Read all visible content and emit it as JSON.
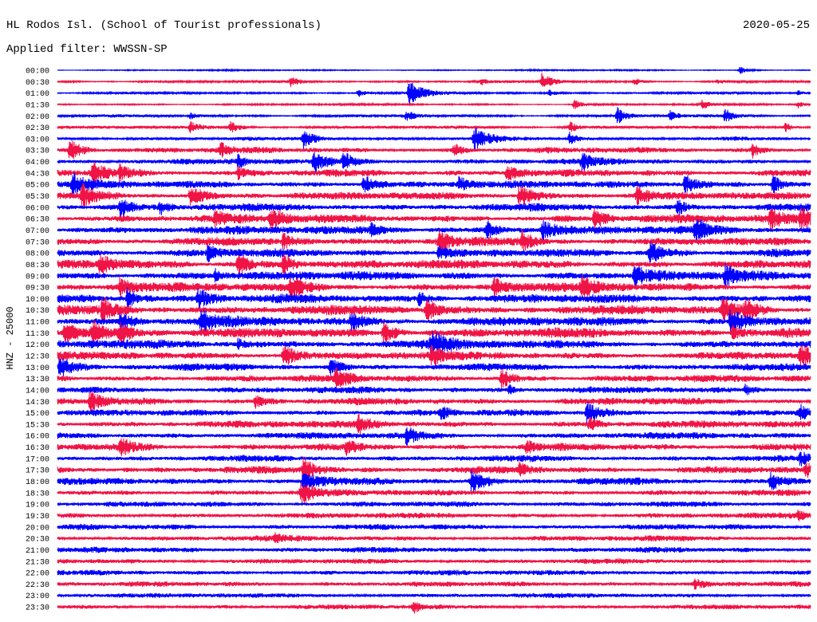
{
  "chart_data": {
    "type": "line",
    "title": "HL Rodos Isl. (School of Tourist professionals)",
    "date": "2020-05-25",
    "subtitle": "Applied filter: WWSSN-SP",
    "ylabel": "HNZ - 25000",
    "xlim": [
      0,
      30
    ],
    "grid": false,
    "colors": [
      "#0000ff",
      "#f01446"
    ],
    "rows": [
      {
        "time": "00:00",
        "noise": 0.06,
        "events": [
          [
            27.2,
            0.35
          ]
        ]
      },
      {
        "time": "00:30",
        "noise": 0.1,
        "events": [
          [
            9.3,
            0.45
          ],
          [
            16.9,
            0.3
          ],
          [
            19.3,
            0.75
          ],
          [
            23.0,
            0.3
          ],
          [
            26.3,
            0.25
          ]
        ]
      },
      {
        "time": "01:00",
        "noise": 0.1,
        "events": [
          [
            12.0,
            0.35
          ],
          [
            14.0,
            1.1
          ],
          [
            19.6,
            0.3
          ],
          [
            29.5,
            0.2
          ]
        ]
      },
      {
        "time": "01:30",
        "noise": 0.08,
        "events": [
          [
            20.6,
            0.45
          ],
          [
            25.7,
            0.4
          ],
          [
            29.5,
            0.3
          ]
        ]
      },
      {
        "time": "02:00",
        "noise": 0.12,
        "events": [
          [
            5.3,
            0.3
          ],
          [
            13.9,
            0.5
          ],
          [
            22.3,
            0.7
          ],
          [
            24.4,
            0.45
          ],
          [
            26.6,
            0.6
          ]
        ]
      },
      {
        "time": "02:30",
        "noise": 0.14,
        "events": [
          [
            5.3,
            0.45
          ],
          [
            6.9,
            0.5
          ],
          [
            20.4,
            0.5
          ],
          [
            29.0,
            0.4
          ]
        ]
      },
      {
        "time": "03:00",
        "noise": 0.16,
        "events": [
          [
            9.8,
            0.9
          ],
          [
            16.6,
            1.1
          ],
          [
            20.4,
            0.6
          ]
        ]
      },
      {
        "time": "03:30",
        "noise": 0.25,
        "events": [
          [
            0.5,
            0.95
          ],
          [
            6.5,
            0.6
          ],
          [
            15.8,
            0.5
          ],
          [
            27.7,
            0.6
          ]
        ]
      },
      {
        "time": "04:00",
        "noise": 0.25,
        "events": [
          [
            7.2,
            0.5
          ],
          [
            10.2,
            0.9
          ],
          [
            11.4,
            0.8
          ],
          [
            20.9,
            0.7
          ]
        ]
      },
      {
        "time": "04:30",
        "noise": 0.3,
        "events": [
          [
            1.4,
            0.9
          ],
          [
            2.5,
            0.6
          ],
          [
            7.2,
            0.5
          ],
          [
            17.9,
            0.8
          ]
        ]
      },
      {
        "time": "05:00",
        "noise": 0.3,
        "events": [
          [
            0.6,
            1.0
          ],
          [
            12.2,
            0.9
          ],
          [
            16.0,
            0.7
          ],
          [
            25.0,
            0.9
          ],
          [
            28.5,
            0.8
          ]
        ]
      },
      {
        "time": "05:30",
        "noise": 0.32,
        "events": [
          [
            1.0,
            1.0
          ],
          [
            5.3,
            0.9
          ],
          [
            18.4,
            1.0
          ],
          [
            23.1,
            0.8
          ]
        ]
      },
      {
        "time": "06:00",
        "noise": 0.32,
        "events": [
          [
            2.5,
            0.9
          ],
          [
            4.1,
            0.6
          ],
          [
            24.7,
            0.6
          ]
        ]
      },
      {
        "time": "06:30",
        "noise": 0.35,
        "events": [
          [
            6.3,
            0.7
          ],
          [
            8.5,
            0.9
          ],
          [
            21.4,
            0.8
          ],
          [
            28.4,
            0.9
          ],
          [
            29.6,
            0.9
          ]
        ]
      },
      {
        "time": "07:00",
        "noise": 0.35,
        "events": [
          [
            12.5,
            0.7
          ],
          [
            17.1,
            0.8
          ],
          [
            19.3,
            0.9
          ],
          [
            25.4,
            1.0
          ]
        ]
      },
      {
        "time": "07:30",
        "noise": 0.35,
        "events": [
          [
            9.0,
            0.7
          ],
          [
            15.2,
            0.9
          ],
          [
            18.5,
            0.8
          ]
        ]
      },
      {
        "time": "08:00",
        "noise": 0.35,
        "events": [
          [
            6.0,
            0.7
          ],
          [
            15.2,
            0.7
          ],
          [
            23.6,
            1.0
          ]
        ]
      },
      {
        "time": "08:30",
        "noise": 0.38,
        "events": [
          [
            1.7,
            0.9
          ],
          [
            7.2,
            0.9
          ],
          [
            9.0,
            0.9
          ]
        ]
      },
      {
        "time": "09:00",
        "noise": 0.38,
        "events": [
          [
            6.3,
            0.5
          ],
          [
            23.0,
            0.9
          ],
          [
            26.6,
            0.9
          ]
        ]
      },
      {
        "time": "09:30",
        "noise": 0.38,
        "events": [
          [
            2.5,
            0.8
          ],
          [
            9.3,
            0.9
          ],
          [
            17.4,
            0.8
          ],
          [
            20.9,
            0.9
          ]
        ]
      },
      {
        "time": "10:00",
        "noise": 0.38,
        "events": [
          [
            2.8,
            0.9
          ],
          [
            5.6,
            0.9
          ],
          [
            14.4,
            0.6
          ]
        ]
      },
      {
        "time": "10:30",
        "noise": 0.4,
        "events": [
          [
            1.8,
            1.0
          ],
          [
            14.7,
            0.9
          ],
          [
            26.5,
            1.0
          ],
          [
            27.4,
            0.9
          ]
        ]
      },
      {
        "time": "11:00",
        "noise": 0.4,
        "events": [
          [
            2.5,
            0.8
          ],
          [
            5.7,
            1.0
          ],
          [
            11.7,
            0.8
          ],
          [
            26.8,
            1.0
          ]
        ]
      },
      {
        "time": "11:30",
        "noise": 0.42,
        "events": [
          [
            0.3,
            1.0
          ],
          [
            1.4,
            1.0
          ],
          [
            2.5,
            0.8
          ],
          [
            13.0,
            0.9
          ],
          [
            26.9,
            0.6
          ]
        ]
      },
      {
        "time": "12:00",
        "noise": 0.38,
        "events": [
          [
            7.2,
            0.5
          ],
          [
            14.9,
            1.1
          ]
        ]
      },
      {
        "time": "12:30",
        "noise": 0.35,
        "events": [
          [
            9.0,
            1.0
          ],
          [
            14.9,
            0.7
          ],
          [
            29.6,
            0.9
          ]
        ]
      },
      {
        "time": "13:00",
        "noise": 0.3,
        "events": [
          [
            0.1,
            1.0
          ],
          [
            10.9,
            0.7
          ]
        ]
      },
      {
        "time": "13:30",
        "noise": 0.3,
        "events": [
          [
            11.1,
            0.8
          ],
          [
            17.7,
            0.8
          ]
        ]
      },
      {
        "time": "14:00",
        "noise": 0.28,
        "events": [
          [
            18.0,
            0.4
          ],
          [
            27.4,
            0.5
          ]
        ]
      },
      {
        "time": "14:30",
        "noise": 0.3,
        "events": [
          [
            1.3,
            0.8
          ],
          [
            7.9,
            0.5
          ]
        ]
      },
      {
        "time": "15:00",
        "noise": 0.28,
        "events": [
          [
            15.3,
            0.5
          ],
          [
            21.1,
            1.0
          ],
          [
            29.6,
            0.6
          ]
        ]
      },
      {
        "time": "15:30",
        "noise": 0.3,
        "events": [
          [
            12.0,
            0.8
          ],
          [
            21.2,
            0.5
          ]
        ]
      },
      {
        "time": "16:00",
        "noise": 0.28,
        "events": [
          [
            13.9,
            0.8
          ]
        ]
      },
      {
        "time": "16:30",
        "noise": 0.3,
        "events": [
          [
            2.5,
            0.8
          ],
          [
            11.5,
            0.5
          ],
          [
            18.7,
            0.5
          ]
        ]
      },
      {
        "time": "17:00",
        "noise": 0.26,
        "events": [
          [
            29.6,
            0.5
          ]
        ]
      },
      {
        "time": "17:30",
        "noise": 0.3,
        "events": [
          [
            9.8,
            1.0
          ],
          [
            18.4,
            0.6
          ],
          [
            29.8,
            0.6
          ]
        ]
      },
      {
        "time": "18:00",
        "noise": 0.3,
        "events": [
          [
            9.8,
            0.9
          ],
          [
            16.5,
            1.0
          ],
          [
            28.4,
            0.8
          ]
        ]
      },
      {
        "time": "18:30",
        "noise": 0.26,
        "events": [
          [
            9.7,
            1.0
          ]
        ]
      },
      {
        "time": "19:00",
        "noise": 0.24,
        "events": []
      },
      {
        "time": "19:30",
        "noise": 0.24,
        "events": [
          [
            29.5,
            0.4
          ]
        ]
      },
      {
        "time": "20:00",
        "noise": 0.24,
        "events": []
      },
      {
        "time": "20:30",
        "noise": 0.24,
        "events": [
          [
            8.7,
            0.4
          ]
        ]
      },
      {
        "time": "21:00",
        "noise": 0.24,
        "events": []
      },
      {
        "time": "21:30",
        "noise": 0.22,
        "events": []
      },
      {
        "time": "22:00",
        "noise": 0.22,
        "events": []
      },
      {
        "time": "22:30",
        "noise": 0.22,
        "events": [
          [
            25.4,
            0.4
          ]
        ]
      },
      {
        "time": "23:00",
        "noise": 0.2,
        "events": []
      },
      {
        "time": "23:30",
        "noise": 0.2,
        "events": [
          [
            14.2,
            0.5
          ]
        ]
      }
    ]
  }
}
